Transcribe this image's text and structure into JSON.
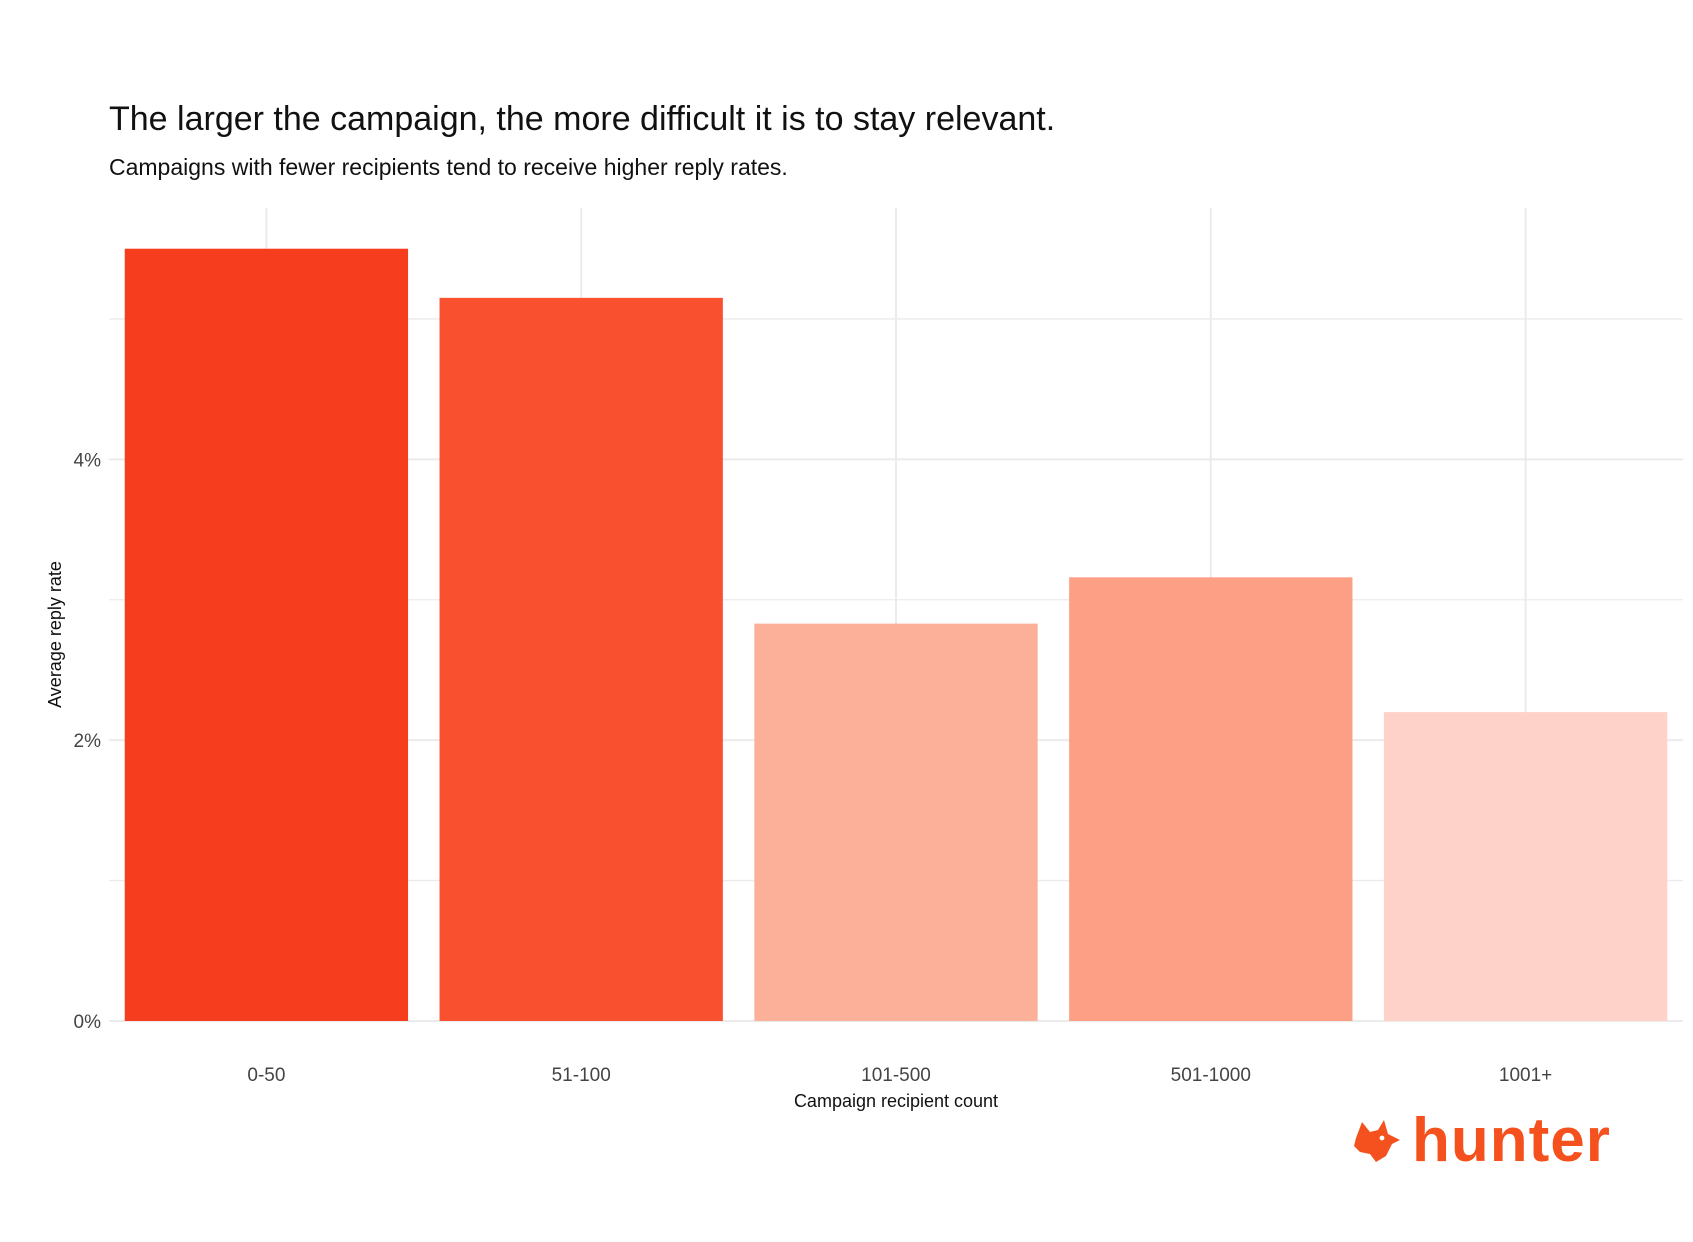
{
  "title": "The larger the campaign, the more difficult it is to stay relevant.",
  "subtitle": "Campaigns with fewer recipients tend to receive higher reply rates.",
  "logo": {
    "text": "hunter",
    "icon": "fox-head-icon"
  },
  "chart_data": {
    "type": "bar",
    "title": "The larger the campaign, the more difficult it is to stay relevant.",
    "subtitle": "Campaigns with fewer recipients tend to receive higher reply rates.",
    "xlabel": "Campaign recipient count",
    "ylabel": "Average reply rate",
    "categories": [
      "0-50",
      "51-100",
      "101-500",
      "501-1000",
      "1001+"
    ],
    "values": [
      5.5,
      5.15,
      2.83,
      3.16,
      2.2
    ],
    "colors": [
      "#f63d1d",
      "#f9512f",
      "#fcb09a",
      "#fd9f84",
      "#fed2c8"
    ],
    "ylim": [
      0,
      5.79
    ],
    "yticks": [
      0,
      2,
      4
    ],
    "ytick_labels": [
      "0%",
      "2%",
      "4%"
    ],
    "grid": true,
    "legend": "none"
  }
}
